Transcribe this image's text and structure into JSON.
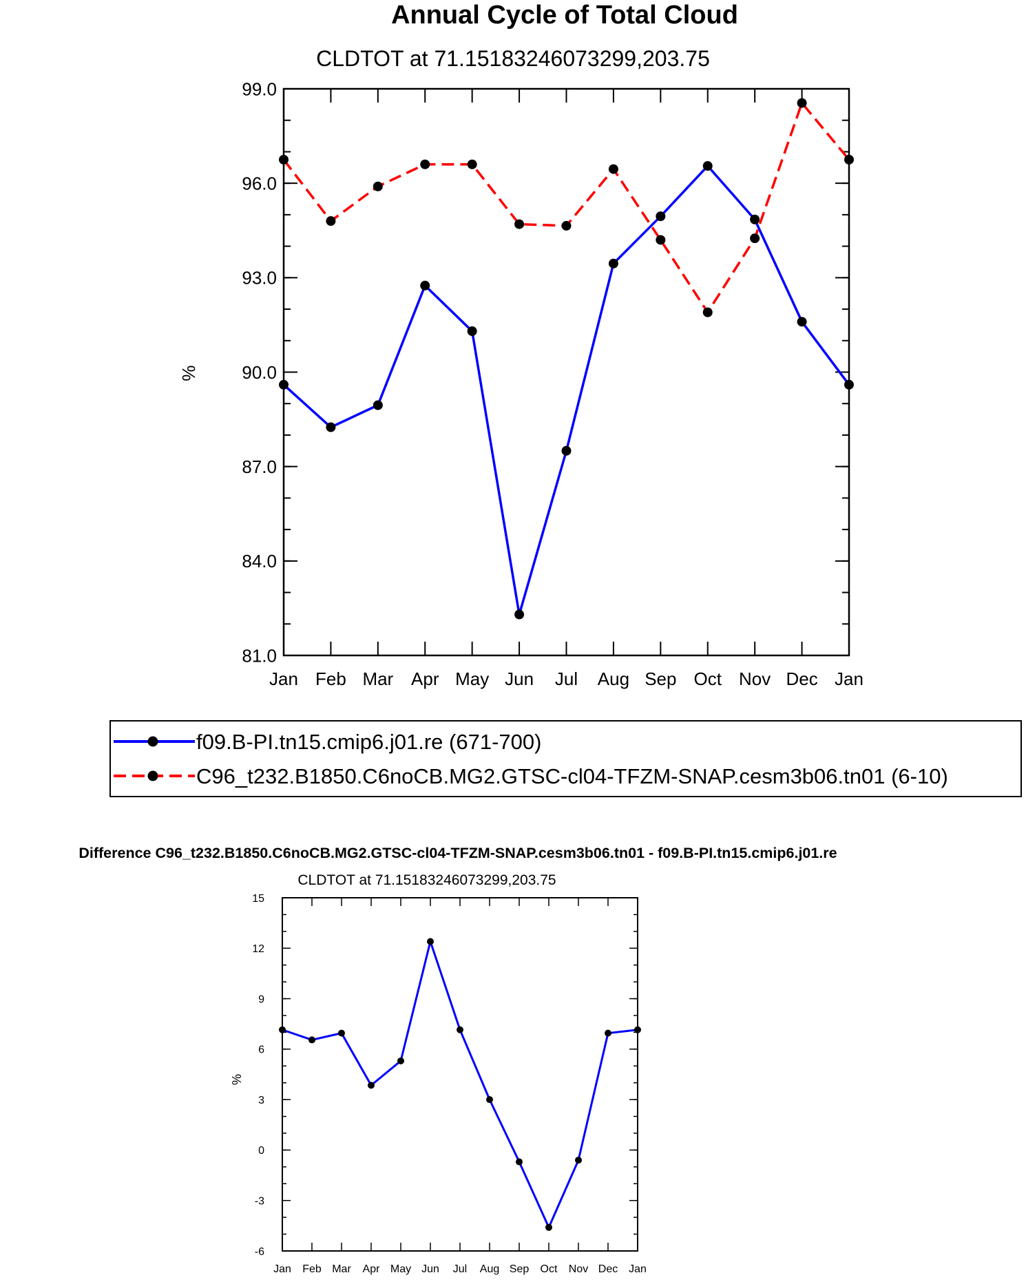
{
  "chart_data": [
    {
      "type": "line",
      "title": "Annual Cycle of Total Cloud",
      "subtitle": "CLDTOT at 71.15183246073299,203.75",
      "xlabel": "",
      "ylabel": "%",
      "categories": [
        "Jan",
        "Feb",
        "Mar",
        "Apr",
        "May",
        "Jun",
        "Jul",
        "Aug",
        "Sep",
        "Oct",
        "Nov",
        "Dec",
        "Jan"
      ],
      "ylim": [
        81,
        99
      ],
      "yticks": [
        81,
        84,
        87,
        90,
        93,
        96,
        99
      ],
      "ytick_labels": [
        "81.0",
        "84.0",
        "87.0",
        "90.0",
        "93.0",
        "96.0",
        "99.0"
      ],
      "y_minor_step": 1,
      "grid": false,
      "legend_position": "below",
      "series": [
        {
          "name": "f09.B-PI.tn15.cmip6.j01.re (671-700)",
          "color": "#0000ff",
          "dash": "solid",
          "values": [
            89.6,
            88.25,
            88.95,
            92.75,
            91.3,
            82.3,
            87.5,
            93.45,
            94.95,
            96.55,
            94.85,
            91.6,
            89.6
          ]
        },
        {
          "name": "C96_t232.B1850.C6noCB.MG2.GTSC-cl04-TFZM-SNAP.cesm3b06.tn01 (6-10)",
          "color": "#ff0000",
          "dash": "dashed",
          "values": [
            96.75,
            94.8,
            95.9,
            96.6,
            96.6,
            94.7,
            94.65,
            96.45,
            94.2,
            91.9,
            94.25,
            98.55,
            96.75
          ]
        }
      ]
    },
    {
      "type": "line",
      "title": "Difference C96_t232.B1850.C6noCB.MG2.GTSC-cl04-TFZM-SNAP.cesm3b06.tn01 - f09.B-PI.tn15.cmip6.j01.re",
      "subtitle": "CLDTOT at 71.15183246073299,203.75",
      "xlabel": "",
      "ylabel": "%",
      "categories": [
        "Jan",
        "Feb",
        "Mar",
        "Apr",
        "May",
        "Jun",
        "Jul",
        "Aug",
        "Sep",
        "Oct",
        "Nov",
        "Dec",
        "Jan"
      ],
      "ylim": [
        -6,
        15
      ],
      "yticks": [
        -6,
        -3,
        0,
        3,
        6,
        9,
        12,
        15
      ],
      "ytick_labels": [
        "-6",
        "-3",
        "0",
        "3",
        "6",
        "9",
        "12",
        "15"
      ],
      "y_minor_step": 1,
      "grid": false,
      "series": [
        {
          "name": "difference",
          "color": "#0000ff",
          "dash": "solid",
          "values": [
            7.15,
            6.55,
            6.95,
            3.85,
            5.3,
            12.4,
            7.15,
            3.0,
            -0.7,
            -4.6,
            -0.6,
            6.95,
            7.15
          ]
        }
      ]
    }
  ]
}
